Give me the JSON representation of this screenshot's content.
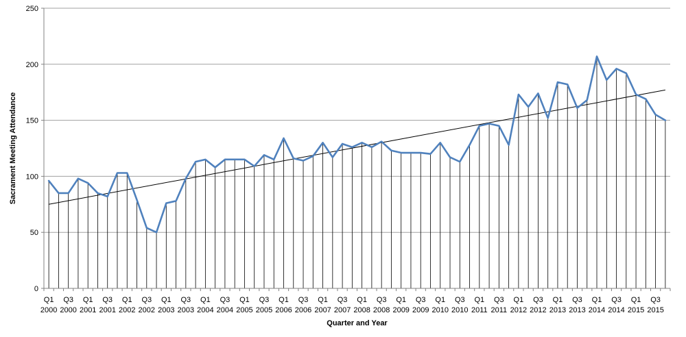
{
  "chart_data": {
    "type": "line",
    "title": "",
    "xlabel": "Quarter and Year",
    "ylabel": "Sacrament Meeting Attendance",
    "ylim": [
      0,
      250
    ],
    "yticks": [
      0,
      50,
      100,
      150,
      200,
      250
    ],
    "grid": "horizontal",
    "legend": "none",
    "drop_lines": true,
    "trendline": {
      "type": "linear",
      "start": 75,
      "end": 177
    },
    "colors": {
      "series": "#4f81bd",
      "trend": "#000000",
      "grid": "#a0a0a0",
      "drop": "#000000"
    },
    "x": [
      "Q1 2000",
      "Q2 2000",
      "Q3 2000",
      "Q4 2000",
      "Q1 2001",
      "Q2 2001",
      "Q3 2001",
      "Q4 2001",
      "Q1 2002",
      "Q2 2002",
      "Q3 2002",
      "Q4 2002",
      "Q1 2003",
      "Q2 2003",
      "Q3 2003",
      "Q4 2003",
      "Q1 2004",
      "Q2 2004",
      "Q3 2004",
      "Q4 2004",
      "Q1 2005",
      "Q2 2005",
      "Q3 2005",
      "Q4 2005",
      "Q1 2006",
      "Q2 2006",
      "Q3 2006",
      "Q4 2006",
      "Q1 2007",
      "Q2 2007",
      "Q3 2007",
      "Q4 2007",
      "Q1 2008",
      "Q2 2008",
      "Q3 2008",
      "Q4 2008",
      "Q1 2009",
      "Q2 2009",
      "Q3 2009",
      "Q4 2009",
      "Q1 2010",
      "Q2 2010",
      "Q3 2010",
      "Q4 2010",
      "Q1 2011",
      "Q2 2011",
      "Q3 2011",
      "Q4 2011",
      "Q1 2012",
      "Q2 2012",
      "Q3 2012",
      "Q4 2012",
      "Q1 2013",
      "Q2 2013",
      "Q3 2013",
      "Q4 2013",
      "Q1 2014",
      "Q2 2014",
      "Q3 2014",
      "Q4 2014",
      "Q1 2015",
      "Q2 2015",
      "Q3 2015",
      "Q4 2015"
    ],
    "tick_labels": [
      {
        "q": "Q1",
        "y": "2000"
      },
      {
        "q": "Q3",
        "y": "2000"
      },
      {
        "q": "Q1",
        "y": "2001"
      },
      {
        "q": "Q3",
        "y": "2001"
      },
      {
        "q": "Q1",
        "y": "2002"
      },
      {
        "q": "Q3",
        "y": "2002"
      },
      {
        "q": "Q1",
        "y": "2003"
      },
      {
        "q": "Q3",
        "y": "2003"
      },
      {
        "q": "Q1",
        "y": "2004"
      },
      {
        "q": "Q3",
        "y": "2004"
      },
      {
        "q": "Q1",
        "y": "2005"
      },
      {
        "q": "Q3",
        "y": "2005"
      },
      {
        "q": "Q1",
        "y": "2006"
      },
      {
        "q": "Q3",
        "y": "2006"
      },
      {
        "q": "Q1",
        "y": "2007"
      },
      {
        "q": "Q3",
        "y": "2007"
      },
      {
        "q": "Q1",
        "y": "2008"
      },
      {
        "q": "Q3",
        "y": "2008"
      },
      {
        "q": "Q1",
        "y": "2009"
      },
      {
        "q": "Q3",
        "y": "2009"
      },
      {
        "q": "Q1",
        "y": "2010"
      },
      {
        "q": "Q3",
        "y": "2010"
      },
      {
        "q": "Q1",
        "y": "2011"
      },
      {
        "q": "Q3",
        "y": "2011"
      },
      {
        "q": "Q1",
        "y": "2012"
      },
      {
        "q": "Q3",
        "y": "2012"
      },
      {
        "q": "Q1",
        "y": "2013"
      },
      {
        "q": "Q3",
        "y": "2013"
      },
      {
        "q": "Q1",
        "y": "2014"
      },
      {
        "q": "Q3",
        "y": "2014"
      },
      {
        "q": "Q1",
        "y": "2015"
      },
      {
        "q": "Q3",
        "y": "2015"
      }
    ],
    "series": [
      {
        "values": [
          96,
          85,
          85,
          98,
          94,
          85,
          82,
          103,
          103,
          79,
          54,
          50,
          76,
          78,
          98,
          113,
          115,
          108,
          115,
          115,
          115,
          109,
          119,
          115,
          134,
          116,
          114,
          118,
          130,
          117,
          129,
          126,
          130,
          126,
          131,
          123,
          121,
          121,
          121,
          120,
          130,
          117,
          113,
          128,
          145,
          147,
          145,
          128,
          173,
          162,
          174,
          152,
          184,
          182,
          161,
          168,
          207,
          186,
          196,
          192,
          173,
          169,
          155,
          150
        ]
      }
    ]
  }
}
